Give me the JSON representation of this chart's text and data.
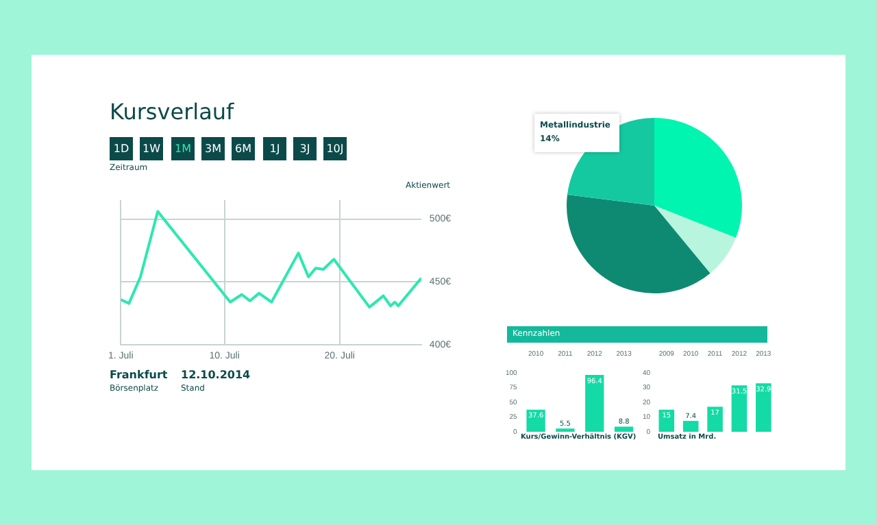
{
  "chart_data": [
    {
      "type": "line",
      "title": "Kursverlauf",
      "ylabel": "Aktienwert",
      "annotations": [
        "1D",
        "1W",
        "1M",
        "3M",
        "6M",
        "1J",
        "3J",
        "10J",
        "Zeitraum",
        "Frankfurt",
        "Börsenplatz",
        "12.10.2014",
        "Stand"
      ],
      "series": [
        {
          "color": "#2de8b0",
          "x": [
            "--07-01",
            "--07-01T17:00",
            "--07-02T17:00",
            "--07-04T05:00",
            "--07-10T12:00",
            "--07-11T12:00",
            "--07-12T05:00",
            "--07-13",
            "--07-14T02:00",
            "--07-16T10:00",
            "--07-17T07:00",
            "--07-17T22:00",
            "--07-18T14:00",
            "--07-19T12:00",
            "--07-22T14:00",
            "--07-23T19:00",
            "--07-24T10:00",
            "--07-24T19:00",
            "--07-25T02:00",
            "--07-27T02:00"
          ],
          "values": [
            436,
            433,
            454,
            506,
            434,
            440,
            435,
            441,
            434,
            473,
            454,
            461,
            460,
            468,
            430,
            439,
            431,
            434,
            431,
            453
          ]
        }
      ],
      "xlim": [
        "--07-01",
        "--07-27T02:00"
      ],
      "xticks": [
        {
          "value": "--07-01",
          "label": "1. Juli"
        },
        {
          "value": "--07-10",
          "label": "10. Juli"
        },
        {
          "value": "--07-20",
          "label": "20. Juli"
        }
      ],
      "ylim": [
        400,
        515
      ],
      "yticks": [
        {
          "value": 400,
          "label": "400€"
        },
        {
          "value": 450,
          "label": "450€"
        },
        {
          "value": 500,
          "label": "500€"
        }
      ],
      "grid": true,
      "marker": "none"
    },
    {
      "type": "pie",
      "categories": [
        null,
        null,
        null,
        null
      ],
      "values": [
        31,
        8,
        38,
        23
      ],
      "colors": [
        "#00f5b0",
        "#b8f5de",
        "#0e8a72",
        "#14c9a0"
      ],
      "annotations": [
        "Metallindustrie",
        "14%"
      ]
    },
    {
      "type": "bar",
      "title": "Kennzahlen",
      "xlabel": "Kurs/Gewinn-Verhältnis (KGV)",
      "categories": [
        "2010",
        "2011",
        "2012",
        "2013"
      ],
      "values": [
        37.6,
        5.5,
        96.4,
        8.8
      ],
      "color": "#14dba5",
      "ylim": [
        0,
        100
      ],
      "yticks": [
        0,
        25,
        50,
        75,
        100
      ],
      "data_labels": true
    },
    {
      "type": "bar",
      "xlabel": "Umsatz in Mrd.",
      "categories": [
        "2009",
        "2010",
        "2011",
        "2012",
        "2013"
      ],
      "values": [
        15.0,
        7.4,
        17.0,
        31.5,
        32.9
      ],
      "color": "#14dba5",
      "ylim": [
        0,
        40
      ],
      "yticks": [
        0,
        10,
        20,
        30,
        40
      ],
      "data_labels": true
    }
  ]
}
